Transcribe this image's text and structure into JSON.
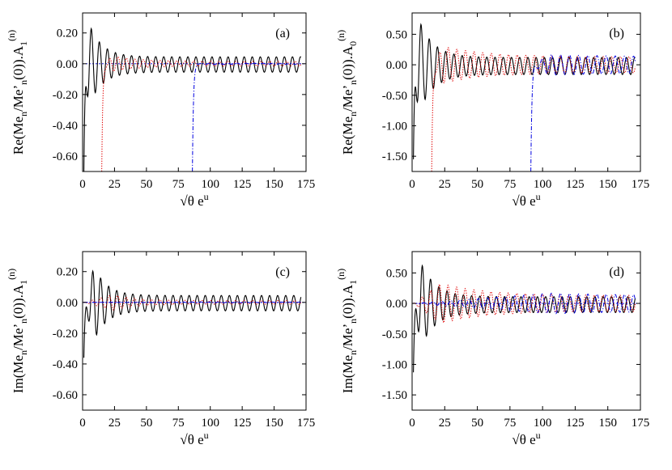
{
  "chart_data": [
    {
      "panel": "(a)",
      "type": "line",
      "ylabel": {
        "main": "Re(Me",
        "sub1": "n",
        "mid": "/Me’",
        "sub2": "n",
        "tail": "(0)).A",
        "sub3": "1",
        "sup": "(n)"
      },
      "xlabel": {
        "root": "√θ",
        "e": " e",
        "sup": "u"
      },
      "xlim": [
        0,
        175
      ],
      "ylim": [
        -0.7,
        0.33
      ],
      "xticks": [
        0,
        25,
        50,
        75,
        100,
        125,
        150,
        175
      ],
      "xtick_labels": [
        "0",
        "25",
        "50",
        "75",
        "100",
        "125",
        "150",
        "175"
      ],
      "yticks": [
        -0.6,
        -0.4,
        -0.2,
        0.0,
        0.2
      ],
      "ytick_labels": [
        "-0.60",
        "-0.40",
        "-0.20",
        "0.00",
        "0.20"
      ],
      "zero_line": true,
      "series": [
        {
          "color": "#000000",
          "style": "solid",
          "start": 1,
          "end": 171,
          "period": 6.3,
          "phase": 1.0,
          "amp_peak": 0.27,
          "amp_tail": 0.05,
          "decay": 0.1,
          "offset": -0.005,
          "t0": 5,
          "dip": -0.7
        },
        {
          "color": "#e00000",
          "style": "dotted",
          "start": 15,
          "end": 171,
          "period": 6.6,
          "phase": 0.3,
          "amp_peak": 0.05,
          "amp_tail": 0.015,
          "decay": 0.05,
          "offset": 0.0,
          "t0": 24,
          "dip": -0.7
        },
        {
          "color": "#0000e0",
          "style": "dashdot",
          "start": 86,
          "end": 171,
          "period": 7.0,
          "phase": 0.0,
          "amp_peak": 0.005,
          "amp_tail": 0.003,
          "decay": 0.05,
          "offset": 0.0,
          "t0": 100,
          "dip": -0.7
        }
      ]
    },
    {
      "panel": "(b)",
      "type": "line",
      "ylabel": {
        "main": "Re(Me",
        "sub1": "n",
        "mid": "/Me’",
        "sub2": "n",
        "tail": "(0)).A",
        "sub3": "0",
        "sup": "(n)"
      },
      "xlabel": {
        "root": "√θ",
        "e": " e",
        "sup": "u"
      },
      "xlim": [
        0,
        175
      ],
      "ylim": [
        -1.75,
        0.85
      ],
      "xticks": [
        0,
        25,
        50,
        75,
        100,
        125,
        150,
        175
      ],
      "xtick_labels": [
        "0",
        "25",
        "50",
        "75",
        "100",
        "125",
        "150",
        "175"
      ],
      "yticks": [
        -1.5,
        -1.0,
        -0.5,
        0.0,
        0.5
      ],
      "ytick_labels": [
        "-1.50",
        "-1.00",
        "-0.50",
        "0.00",
        "0.50"
      ],
      "zero_line": false,
      "series": [
        {
          "color": "#000000",
          "style": "solid",
          "start": 1,
          "end": 171,
          "period": 6.3,
          "phase": 1.0,
          "amp_peak": 0.78,
          "amp_tail": 0.14,
          "decay": 0.09,
          "offset": -0.02,
          "t0": 5,
          "dip": -1.55
        },
        {
          "color": "#e00000",
          "style": "dotted",
          "start": 15,
          "end": 171,
          "period": 6.6,
          "phase": 0.3,
          "amp_peak": 0.3,
          "amp_tail": 0.13,
          "decay": 0.03,
          "offset": 0.0,
          "t0": 24,
          "dip": -1.75
        },
        {
          "color": "#0000e0",
          "style": "dashdot",
          "start": 91,
          "end": 171,
          "period": 7.0,
          "phase": 0.0,
          "amp_peak": 0.17,
          "amp_tail": 0.13,
          "decay": 0.02,
          "offset": 0.0,
          "t0": 106,
          "dip": -1.75
        }
      ]
    },
    {
      "panel": "(c)",
      "type": "line",
      "ylabel": {
        "main": "Im(Me",
        "sub1": "n",
        "mid": "/Me’",
        "sub2": "n",
        "tail": "(0)).A",
        "sub3": "1",
        "sup": "(n)"
      },
      "xlabel": {
        "root": "√θ",
        "e": " e",
        "sup": "u"
      },
      "xlim": [
        0,
        175
      ],
      "ylim": [
        -0.7,
        0.33
      ],
      "xticks": [
        0,
        25,
        50,
        75,
        100,
        125,
        150,
        175
      ],
      "xtick_labels": [
        "0",
        "25",
        "50",
        "75",
        "100",
        "125",
        "150",
        "175"
      ],
      "yticks": [
        -0.6,
        -0.4,
        -0.2,
        0.0,
        0.2
      ],
      "ytick_labels": [
        "-0.60",
        "-0.40",
        "-0.20",
        "0.00",
        "0.20"
      ],
      "zero_line": true,
      "series": [
        {
          "color": "#000000",
          "style": "solid",
          "start": 1,
          "end": 171,
          "period": 6.3,
          "phase": 0.0,
          "amp_peak": 0.24,
          "amp_tail": 0.05,
          "decay": 0.1,
          "offset": -0.005,
          "t0": 9,
          "dip": -0.36
        },
        {
          "color": "#e00000",
          "style": "dotted",
          "start": 1,
          "end": 171,
          "period": 6.6,
          "phase": 0.5,
          "amp_peak": 0.05,
          "amp_tail": 0.012,
          "decay": 0.06,
          "offset": 0.0,
          "t0": 24,
          "dip": 0.0
        },
        {
          "color": "#0000e0",
          "style": "dashdot",
          "start": 1,
          "end": 171,
          "period": 7.0,
          "phase": 0.0,
          "amp_peak": 0.003,
          "amp_tail": 0.002,
          "decay": 0.05,
          "offset": 0.0,
          "t0": 100,
          "dip": 0.0
        }
      ]
    },
    {
      "panel": "(d)",
      "type": "line",
      "ylabel": {
        "main": "Im(Me",
        "sub1": "n",
        "mid": "/Me’",
        "sub2": "n",
        "tail": "(0)).A",
        "sub3": "1",
        "sup": "(n)"
      },
      "xlabel": {
        "root": "√θ",
        "e": " e",
        "sup": "u"
      },
      "xlim": [
        0,
        175
      ],
      "ylim": [
        -1.75,
        0.85
      ],
      "xticks": [
        0,
        25,
        50,
        75,
        100,
        125,
        150,
        175
      ],
      "xtick_labels": [
        "0",
        "25",
        "50",
        "75",
        "100",
        "125",
        "150",
        "175"
      ],
      "yticks": [
        -1.5,
        -1.0,
        -0.5,
        0.0,
        0.5
      ],
      "ytick_labels": [
        "-1.50",
        "-1.00",
        "-0.50",
        "0.00",
        "0.50"
      ],
      "zero_line": true,
      "series": [
        {
          "color": "#000000",
          "style": "solid",
          "start": 1,
          "end": 171,
          "period": 6.3,
          "phase": 0.0,
          "amp_peak": 0.68,
          "amp_tail": 0.13,
          "decay": 0.09,
          "offset": -0.02,
          "t0": 7,
          "dip": -1.13
        },
        {
          "color": "#e00000",
          "style": "dotted",
          "start": 1,
          "end": 171,
          "period": 6.6,
          "phase": 0.5,
          "amp_peak": 0.33,
          "amp_tail": 0.13,
          "decay": 0.03,
          "offset": 0.0,
          "t0": 22,
          "dip": 0.0
        },
        {
          "color": "#0000e0",
          "style": "dashdot",
          "start": 1,
          "end": 171,
          "period": 7.0,
          "phase": 0.0,
          "amp_peak": 0.17,
          "amp_tail": 0.13,
          "decay": 0.02,
          "offset": 0.0,
          "t0": 108,
          "dip": 0.0
        }
      ]
    }
  ]
}
